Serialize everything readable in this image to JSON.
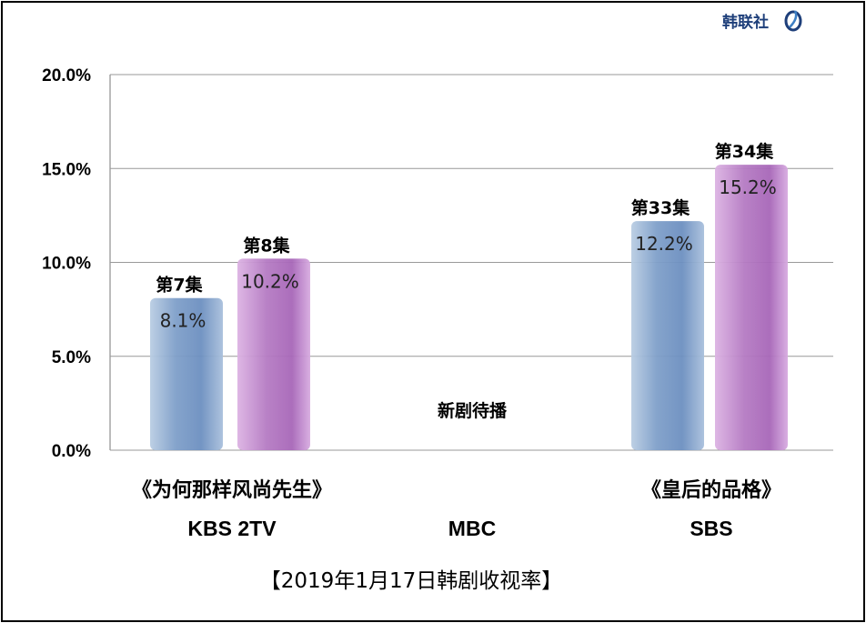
{
  "brand": {
    "logo_text": "韩联社",
    "logo_icon": "yonhap-swirl-icon",
    "logo_color": "#1e3f7a"
  },
  "chart_data": {
    "type": "bar",
    "title": "【2019年1月17日韩剧收视率】",
    "ylim": [
      0,
      20
    ],
    "yticks": [
      "0.0%",
      "5.0%",
      "10.0%",
      "15.0%",
      "20.0%"
    ],
    "grid": true,
    "groups": [
      {
        "show": "《为何那样风尚先生》",
        "network": "KBS 2TV",
        "bars": [
          {
            "episode": "第7集",
            "value": 8.1,
            "label": "8.1%",
            "color": "blue"
          },
          {
            "episode": "第8集",
            "value": 10.2,
            "label": "10.2%",
            "color": "purple"
          }
        ]
      },
      {
        "show": "",
        "network": "MBC",
        "note": "新剧待播",
        "bars": []
      },
      {
        "show": "《皇后的品格》",
        "network": "SBS",
        "bars": [
          {
            "episode": "第33集",
            "value": 12.2,
            "label": "12.2%",
            "color": "blue"
          },
          {
            "episode": "第34集",
            "value": 15.2,
            "label": "15.2%",
            "color": "purple"
          }
        ]
      }
    ]
  },
  "colors": {
    "blue": "#7e9fc8",
    "purple": "#b97bc4",
    "grid": "#999999"
  }
}
